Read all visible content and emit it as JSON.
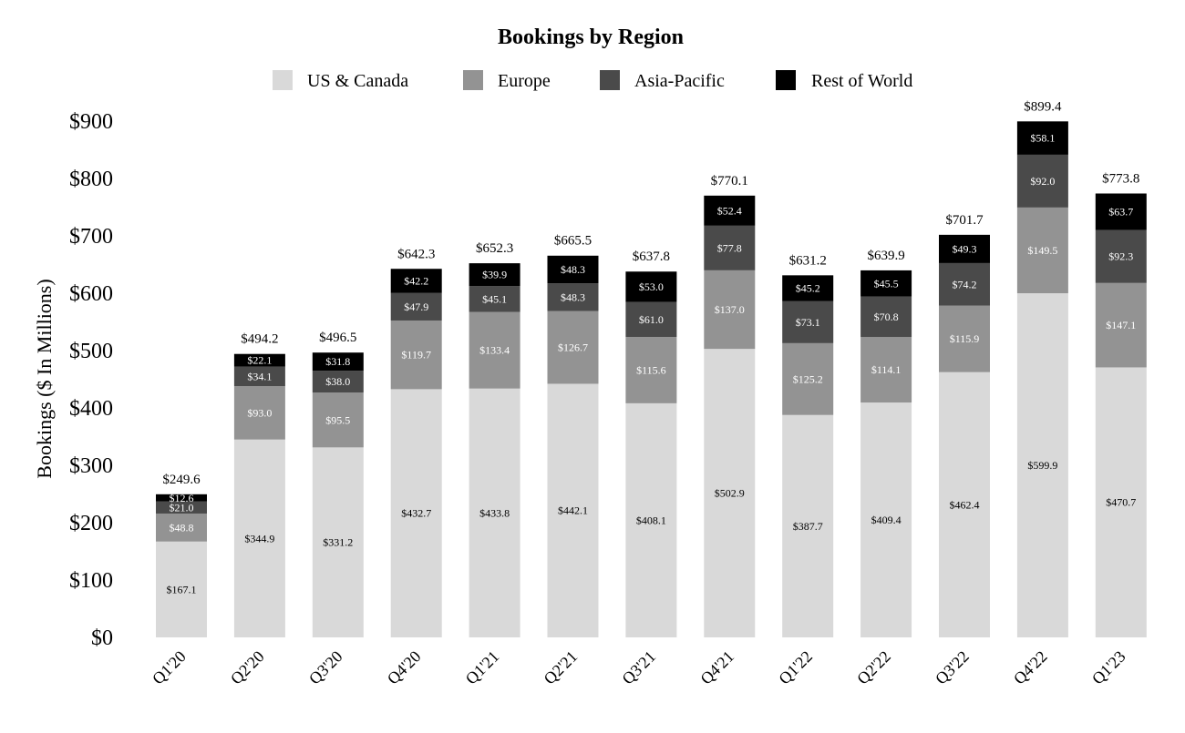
{
  "chart_data": {
    "type": "bar",
    "stacked": true,
    "title": "Bookings by Region",
    "ylabel": "Bookings ($ In Millions)",
    "xlabel": "",
    "ylim": [
      0,
      900
    ],
    "yticks": [
      0,
      100,
      200,
      300,
      400,
      500,
      600,
      700,
      800,
      900
    ],
    "ytick_labels": [
      "$0",
      "$100",
      "$200",
      "$300",
      "$400",
      "$500",
      "$600",
      "$700",
      "$800",
      "$900"
    ],
    "categories": [
      "Q1'20",
      "Q2'20",
      "Q3'20",
      "Q4'20",
      "Q1'21",
      "Q2'21",
      "Q3'21",
      "Q4'21",
      "Q1'22",
      "Q2'22",
      "Q3'22",
      "Q4'22",
      "Q1'23"
    ],
    "series": [
      {
        "name": "US & Canada",
        "color": "#d9d9d9",
        "label_color": "#000000",
        "values": [
          167.1,
          344.9,
          331.2,
          432.7,
          433.8,
          442.1,
          408.1,
          502.9,
          387.7,
          409.4,
          462.4,
          599.9,
          470.7
        ],
        "labels": [
          "$167.1",
          "$344.9",
          "$331.2",
          "$432.7",
          "$433.8",
          "$442.1",
          "$408.1",
          "$502.9",
          "$387.7",
          "$409.4",
          "$462.4",
          "$599.9",
          "$470.7"
        ]
      },
      {
        "name": "Europe",
        "color": "#939393",
        "label_color": "#ffffff",
        "values": [
          48.8,
          93.0,
          95.5,
          119.7,
          133.4,
          126.7,
          115.6,
          137.0,
          125.2,
          114.1,
          115.9,
          149.5,
          147.1
        ],
        "labels": [
          "$48.8",
          "$93.0",
          "$95.5",
          "$119.7",
          "$133.4",
          "$126.7",
          "$115.6",
          "$137.0",
          "$125.2",
          "$114.1",
          "$115.9",
          "$149.5",
          "$147.1"
        ]
      },
      {
        "name": "Asia-Pacific",
        "color": "#4a4a4a",
        "label_color": "#ffffff",
        "values": [
          21.0,
          34.1,
          38.0,
          47.9,
          45.1,
          48.3,
          61.0,
          77.8,
          73.1,
          70.8,
          74.2,
          92.0,
          92.3
        ],
        "labels": [
          "$21.0",
          "$34.1",
          "$38.0",
          "$47.9",
          "$45.1",
          "$48.3",
          "$61.0",
          "$77.8",
          "$73.1",
          "$70.8",
          "$74.2",
          "$92.0",
          "$92.3"
        ]
      },
      {
        "name": "Rest of World",
        "color": "#000000",
        "label_color": "#ffffff",
        "values": [
          12.6,
          22.1,
          31.8,
          42.2,
          39.9,
          48.3,
          53.0,
          52.4,
          45.2,
          45.5,
          49.3,
          58.1,
          63.7
        ],
        "labels": [
          "$12.6",
          "$22.1",
          "$31.8",
          "$42.2",
          "$39.9",
          "$48.3",
          "$53.0",
          "$52.4",
          "$45.2",
          "$45.5",
          "$49.3",
          "$58.1",
          "$63.7"
        ]
      }
    ],
    "totals": [
      249.6,
      494.2,
      496.5,
      642.3,
      652.3,
      665.5,
      637.8,
      770.1,
      631.2,
      639.9,
      701.7,
      899.4,
      773.8
    ],
    "total_labels": [
      "$249.6",
      "$494.2",
      "$496.5",
      "$642.3",
      "$652.3",
      "$665.5",
      "$637.8",
      "$770.1",
      "$631.2",
      "$639.9",
      "$701.7",
      "$899.4",
      "$773.8"
    ],
    "legend": {
      "position": "top-center"
    },
    "grid": false,
    "xtick_rotation": "45 degrees"
  }
}
